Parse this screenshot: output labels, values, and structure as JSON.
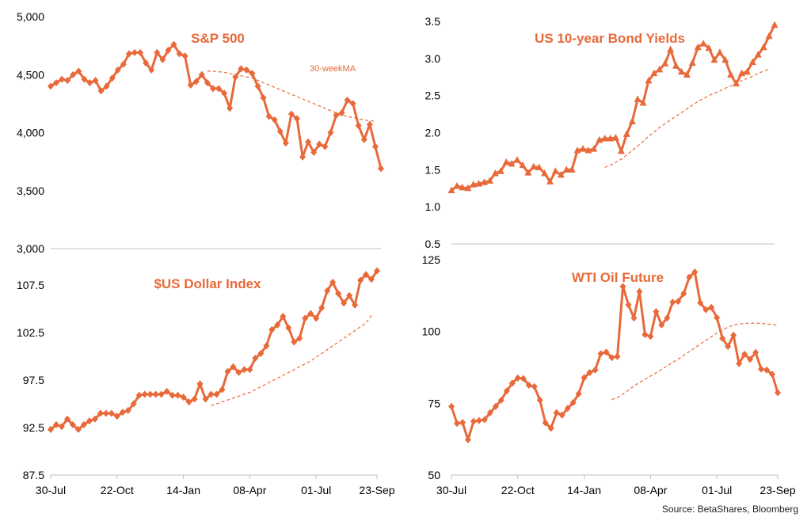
{
  "chart_data": [
    {
      "id": "sp500",
      "type": "line",
      "title": "S&P 500",
      "annotation": "30-weekMA",
      "ylim": [
        3000,
        5000
      ],
      "yticks": [
        "3,000",
        "3,500",
        "4,000",
        "4,500",
        "5,000"
      ],
      "ytick_values": [
        3000,
        3500,
        4000,
        4500,
        5000
      ],
      "xlabels": [],
      "series": [
        {
          "values": [
            4400,
            4430,
            4460,
            4450,
            4500,
            4530,
            4460,
            4430,
            4450,
            4360,
            4400,
            4470,
            4540,
            4590,
            4680,
            4690,
            4690,
            4600,
            4540,
            4690,
            4630,
            4710,
            4760,
            4680,
            4660,
            4410,
            4440,
            4500,
            4430,
            4380,
            4380,
            4340,
            4210,
            4480,
            4550,
            4540,
            4510,
            4400,
            4300,
            4140,
            4110,
            4010,
            3910,
            4160,
            4120,
            3790,
            3920,
            3830,
            3900,
            3880,
            4000,
            4150,
            4170,
            4280,
            4250,
            4060,
            3940,
            4070,
            3880,
            3690
          ]
        },
        {
          "name": "30-weekMA",
          "start": 28,
          "values": [
            4530,
            4530,
            4525,
            4520,
            4510,
            4500,
            4490,
            4480,
            4470,
            4450,
            4430,
            4410,
            4390,
            4370,
            4350,
            4330,
            4310,
            4290,
            4270,
            4250,
            4230,
            4210,
            4190,
            4170,
            4150,
            4140,
            4130,
            4120,
            4110,
            4100,
            4100
          ]
        }
      ]
    },
    {
      "id": "bond",
      "type": "line",
      "title": "US 10-year Bond Yields",
      "ylim": [
        0.5,
        3.5
      ],
      "yticks": [
        "0.5",
        "1.0",
        "1.5",
        "2.0",
        "2.5",
        "3.0",
        "3.5"
      ],
      "ytick_values": [
        0.5,
        1.0,
        1.5,
        2.0,
        2.5,
        3.0,
        3.5
      ],
      "xlabels": [],
      "series": [
        {
          "values": [
            1.22,
            1.28,
            1.26,
            1.25,
            1.3,
            1.31,
            1.33,
            1.35,
            1.45,
            1.48,
            1.6,
            1.58,
            1.63,
            1.56,
            1.46,
            1.54,
            1.53,
            1.45,
            1.34,
            1.48,
            1.43,
            1.5,
            1.5,
            1.76,
            1.78,
            1.76,
            1.78,
            1.9,
            1.92,
            1.92,
            1.93,
            1.75,
            1.98,
            2.15,
            2.45,
            2.4,
            2.7,
            2.8,
            2.85,
            2.93,
            3.12,
            2.9,
            2.82,
            2.78,
            2.94,
            3.15,
            3.2,
            3.14,
            2.98,
            3.08,
            2.98,
            2.78,
            2.66,
            2.8,
            2.82,
            2.95,
            3.05,
            3.15,
            3.3,
            3.45
          ]
        },
        {
          "name": "30-weekMA",
          "start": 28,
          "values": [
            1.53,
            1.56,
            1.6,
            1.64,
            1.7,
            1.76,
            1.82,
            1.88,
            1.95,
            2.01,
            2.07,
            2.12,
            2.17,
            2.22,
            2.27,
            2.32,
            2.37,
            2.42,
            2.46,
            2.5,
            2.53,
            2.56,
            2.6,
            2.63,
            2.66,
            2.7,
            2.73,
            2.76,
            2.8,
            2.83,
            2.86
          ]
        }
      ]
    },
    {
      "id": "dxy",
      "type": "line",
      "title": "$US Dollar Index",
      "ylim": [
        87.5,
        110
      ],
      "yticks": [
        "87.5",
        "92.5",
        "97.5",
        "102.5",
        "107.5"
      ],
      "ytick_values": [
        87.5,
        92.5,
        97.5,
        102.5,
        107.5
      ],
      "xlabels": [
        "30-Jul",
        "22-Oct",
        "14-Jan",
        "08-Apr",
        "01-Jul",
        "23-Sep"
      ],
      "xlabel_positions": [
        0,
        12,
        24,
        36,
        48,
        59
      ],
      "series": [
        {
          "values": [
            92.3,
            92.8,
            92.6,
            93.4,
            92.8,
            92.3,
            92.8,
            93.2,
            93.4,
            94.0,
            94.0,
            94.0,
            93.7,
            94.1,
            94.3,
            95.0,
            95.9,
            96.0,
            96.0,
            96.0,
            96.0,
            96.3,
            95.9,
            95.9,
            95.7,
            95.2,
            95.5,
            97.1,
            95.5,
            96.0,
            96.0,
            96.5,
            98.4,
            98.9,
            98.3,
            98.6,
            98.6,
            99.8,
            100.3,
            101.1,
            102.8,
            103.3,
            104.2,
            103.0,
            101.5,
            101.9,
            104.0,
            104.5,
            104.0,
            105.1,
            106.9,
            107.8,
            106.6,
            105.6,
            106.4,
            105.4,
            108.0,
            108.6,
            108.1,
            109.0
          ]
        },
        {
          "name": "30-weekMA",
          "start": 29,
          "values": [
            94.8,
            95.0,
            95.2,
            95.4,
            95.6,
            95.8,
            96.0,
            96.2,
            96.5,
            96.8,
            97.1,
            97.4,
            97.7,
            98.0,
            98.3,
            98.6,
            98.9,
            99.2,
            99.5,
            99.9,
            100.3,
            100.7,
            101.1,
            101.5,
            101.9,
            102.3,
            102.7,
            103.1,
            103.5,
            104.3
          ]
        }
      ]
    },
    {
      "id": "wti",
      "type": "line",
      "title": "WTI Oil Future",
      "ylim": [
        50,
        125
      ],
      "yticks": [
        "50",
        "75",
        "100",
        "125"
      ],
      "ytick_values": [
        50,
        75,
        100,
        125
      ],
      "xlabels": [
        "30-Jul",
        "22-Oct",
        "14-Jan",
        "08-Apr",
        "01-Jul",
        "23-Sep"
      ],
      "xlabel_positions": [
        0,
        12,
        24,
        36,
        48,
        59
      ],
      "series": [
        {
          "values": [
            73.9,
            68.0,
            68.3,
            62.3,
            68.7,
            69.0,
            69.3,
            71.7,
            73.9,
            76.1,
            79.3,
            82.0,
            83.8,
            83.6,
            81.3,
            80.8,
            76.1,
            68.2,
            66.3,
            71.7,
            70.9,
            73.2,
            75.2,
            78.3,
            83.9,
            85.7,
            86.6,
            92.3,
            92.8,
            90.9,
            91.3,
            115.7,
            109.3,
            104.7,
            113.9,
            98.9,
            98.3,
            106.9,
            102.3,
            104.7,
            110.2,
            110.5,
            113.2,
            118.9,
            120.7,
            110.0,
            107.6,
            108.4,
            104.8,
            97.6,
            94.8,
            98.7,
            88.8,
            92.1,
            90.3,
            92.7,
            86.9,
            86.6,
            85.1,
            78.7
          ]
        },
        {
          "name": "30-weekMA",
          "start": 29,
          "values": [
            76.3,
            77.0,
            78.2,
            79.6,
            81.0,
            82.3,
            83.4,
            84.5,
            85.6,
            86.8,
            88.0,
            89.2,
            90.4,
            91.7,
            93.0,
            94.3,
            95.6,
            96.9,
            98.2,
            99.5,
            100.6,
            101.5,
            102.2,
            102.6,
            102.8,
            102.9,
            102.9,
            102.8,
            102.6,
            102.4,
            102.2
          ]
        }
      ]
    }
  ],
  "colors": {
    "line": "#E8693A",
    "axis": "#BFBFBF",
    "text": "#000000"
  },
  "footer": {
    "source": "Source:  BetaShares, Bloomberg"
  }
}
